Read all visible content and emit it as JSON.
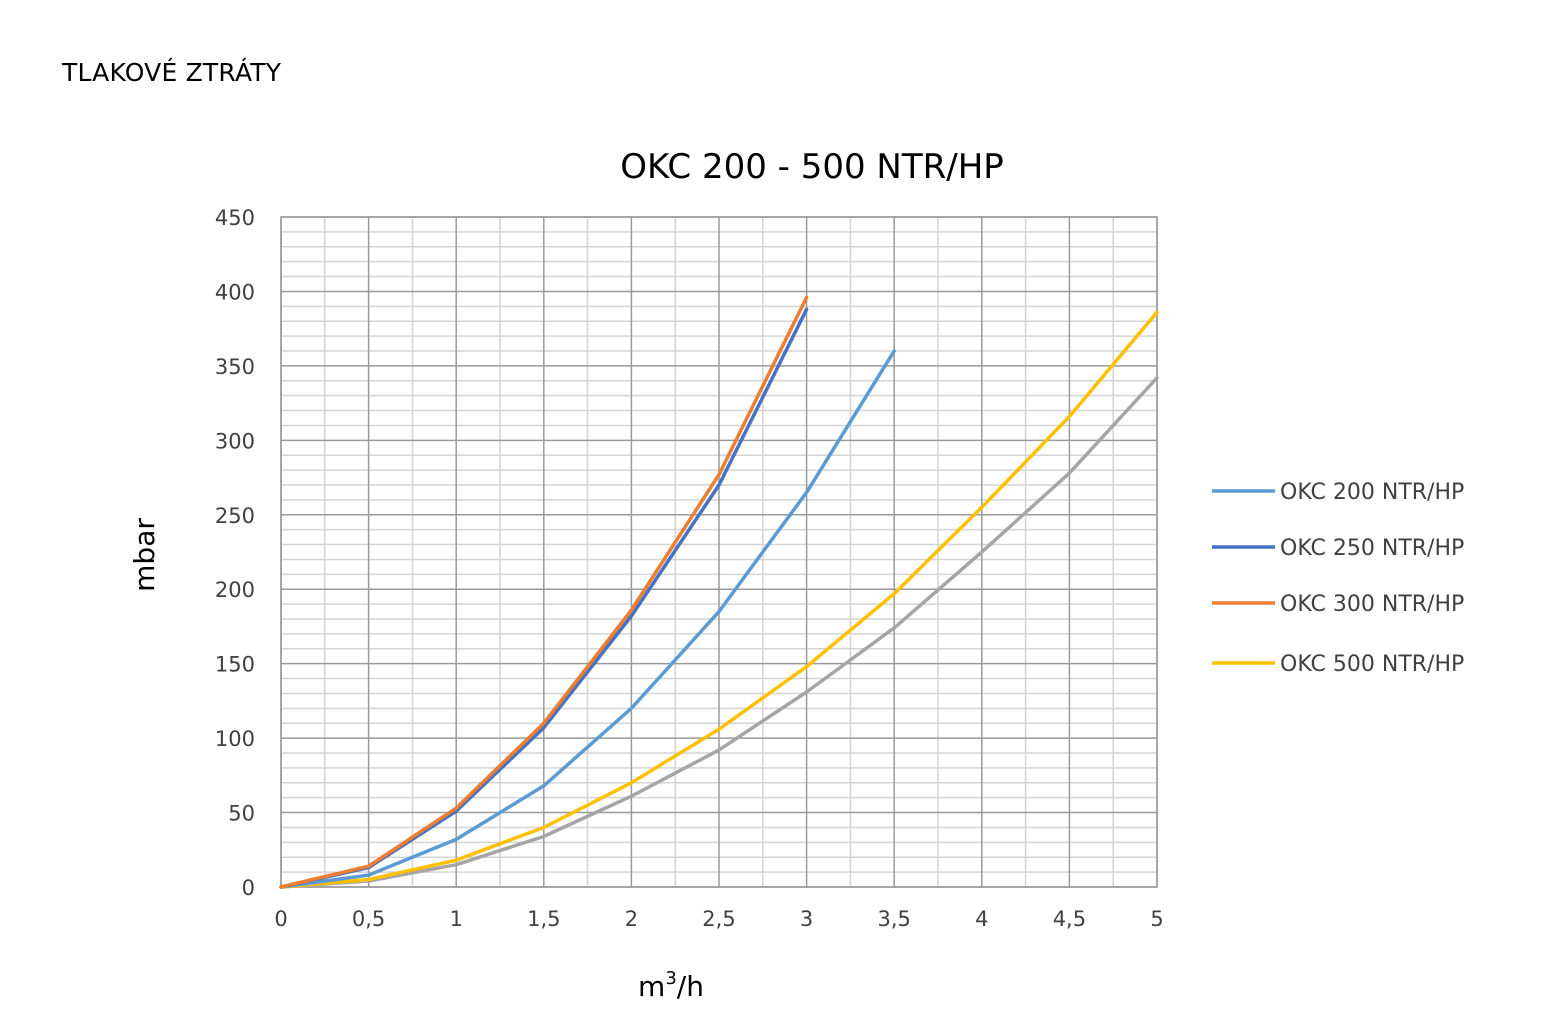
{
  "page": {
    "heading": "TLAKOVÉ ZTRÁTY"
  },
  "chart_data": {
    "type": "line",
    "title": "OKC 200 - 500 NTR/HP",
    "xlabel": "m3/h",
    "xlabel_base": "m",
    "xlabel_sup": "3",
    "xlabel_rest": "/h",
    "ylabel": "mbar",
    "xlim": [
      0,
      5
    ],
    "ylim": [
      0,
      450
    ],
    "x_ticks": [
      "0",
      "0,5",
      "1",
      "1,5",
      "2",
      "2,5",
      "3",
      "3,5",
      "4",
      "4,5",
      "5"
    ],
    "y_ticks": [
      "0",
      "50",
      "100",
      "150",
      "200",
      "250",
      "300",
      "350",
      "400",
      "450"
    ],
    "grid": true,
    "legend_position": "right",
    "series": [
      {
        "name": "OKC 200 NTR/HP",
        "color": "#5b9bd5",
        "x": [
          0,
          0.5,
          1,
          1.5,
          2,
          2.5,
          3,
          3.5
        ],
        "y": [
          0,
          8,
          32,
          68,
          120,
          185,
          265,
          360
        ]
      },
      {
        "name": "OKC 250 NTR/HP",
        "color": "#4472c4",
        "x": [
          0,
          0.5,
          1,
          1.5,
          2,
          2.5,
          3
        ],
        "y": [
          0,
          13,
          51,
          107,
          182,
          270,
          388
        ]
      },
      {
        "name": "OKC 300 NTR/HP",
        "color": "#ed7d31",
        "x": [
          0,
          0.5,
          1,
          1.5,
          2,
          2.5,
          3
        ],
        "y": [
          0,
          14,
          53,
          110,
          186,
          277,
          396
        ]
      },
      {
        "name": "OKC 500 NTR/HP",
        "color": "#ffc000",
        "x": [
          0,
          0.5,
          1,
          1.5,
          2,
          2.5,
          3,
          3.5,
          4,
          4.5,
          5
        ],
        "y": [
          0,
          5,
          18,
          40,
          70,
          106,
          148,
          197,
          255,
          316,
          386
        ]
      },
      {
        "name": "",
        "color": "#a5a5a5",
        "x": [
          0,
          0.5,
          1,
          1.5,
          2,
          2.5,
          3,
          3.5,
          4,
          4.5,
          5
        ],
        "y": [
          0,
          4,
          15,
          34,
          61,
          92,
          131,
          174,
          225,
          278,
          342
        ]
      }
    ]
  }
}
